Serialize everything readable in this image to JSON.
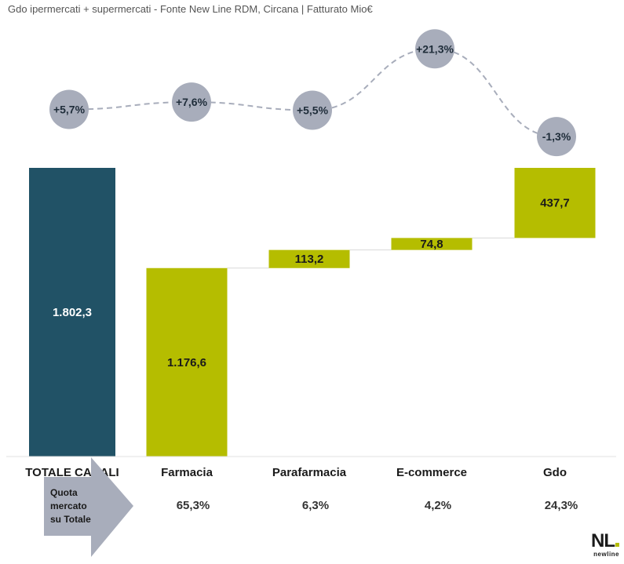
{
  "subtitle": "Gdo ipermercati + supermercati - Fonte New Line RDM, Circana | Fatturato Mio€",
  "colors": {
    "total_bar": "#215266",
    "channel_bar": "#b5bd00",
    "growth_bubble": "#a8adbb",
    "growth_line": "#a8adbb",
    "arrow": "#a8adbb"
  },
  "chart_data": {
    "type": "bar",
    "subtype": "waterfall",
    "categories": [
      "TOTALE CANALI",
      "Farmacia",
      "Parafarmacia",
      "E-commerce",
      "Gdo"
    ],
    "values": [
      1802.3,
      1176.6,
      113.2,
      74.8,
      437.7
    ],
    "value_labels": [
      "1.802,3",
      "1.176,6",
      "113,2",
      "74,8",
      "437,7"
    ],
    "growth": [
      5.7,
      7.6,
      5.5,
      21.3,
      -1.3
    ],
    "growth_labels": [
      "+5,7%",
      "+7,6%",
      "+5,5%",
      "+21,3%",
      "-1,3%"
    ],
    "share_label": [
      "Quota",
      "mercato",
      "su Totale"
    ],
    "shares": [
      "",
      "65,3%",
      "6,3%",
      "4,2%",
      "24,3%"
    ],
    "ylim": [
      0,
      1802.3
    ]
  },
  "logo": {
    "mark": "NL",
    "text": "newline"
  }
}
